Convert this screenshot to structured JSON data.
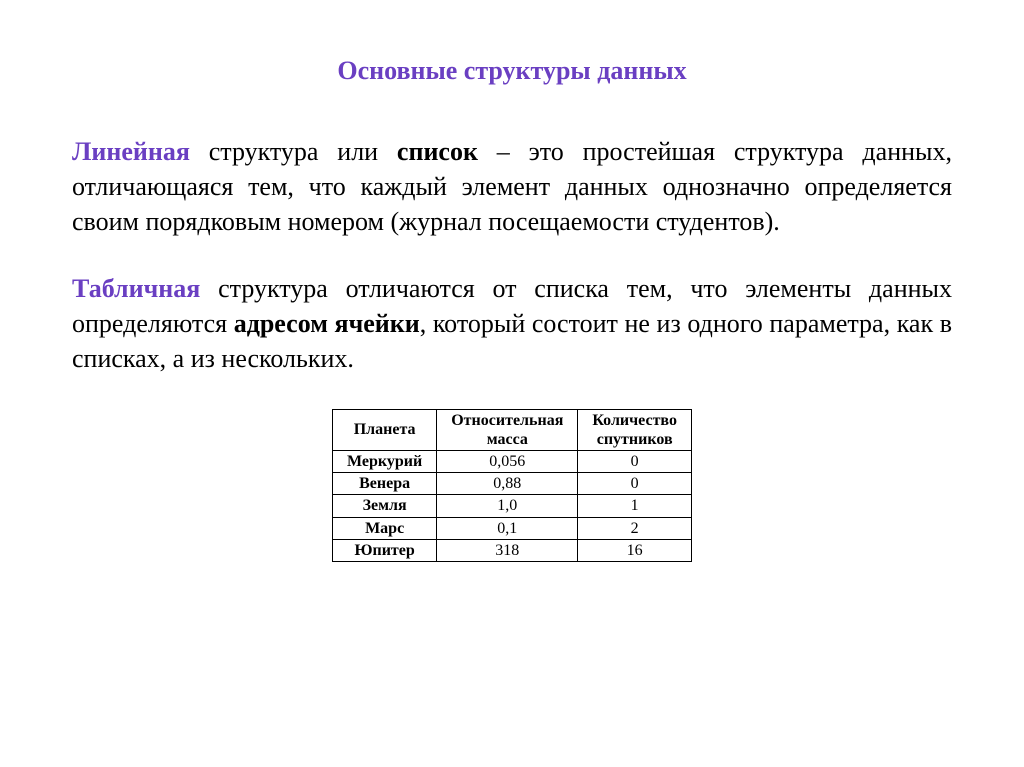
{
  "title": "Основные структуры данных",
  "para1": {
    "lead": "Линейная",
    "mid1": " структура или ",
    "boldWord": "список",
    "rest": " – это простейшая структура данных, отличающаяся тем, что каждый элемент данных однозначно определяется своим порядковым номером (журнал посещаемости студентов)."
  },
  "para2": {
    "lead": "Табличная",
    "mid1": " структура отличаются от списка тем, что элементы данных определяются ",
    "boldWord": "адресом ячейки",
    "rest": ", который состоит не из одного параметра, как в списках, а из нескольких."
  },
  "table": {
    "type": "table",
    "border_color": "#000000",
    "background_color": "#ffffff",
    "font_size_pt": 12,
    "columns": [
      {
        "label": "Планета"
      },
      {
        "label_line1": "Относительная",
        "label_line2": "масса"
      },
      {
        "label_line1": "Количество",
        "label_line2": "спутников"
      }
    ],
    "rows": [
      {
        "planet": "Меркурий",
        "mass": "0,056",
        "moons": "0"
      },
      {
        "planet": "Венера",
        "mass": "0,88",
        "moons": "0"
      },
      {
        "planet": "Земля",
        "mass": "1,0",
        "moons": "1"
      },
      {
        "planet": "Марс",
        "mass": "0,1",
        "moons": "2"
      },
      {
        "planet": "Юпитер",
        "mass": "318",
        "moons": "16"
      }
    ]
  },
  "colors": {
    "accent": "#6a3fc2",
    "text": "#000000",
    "background": "#ffffff"
  }
}
